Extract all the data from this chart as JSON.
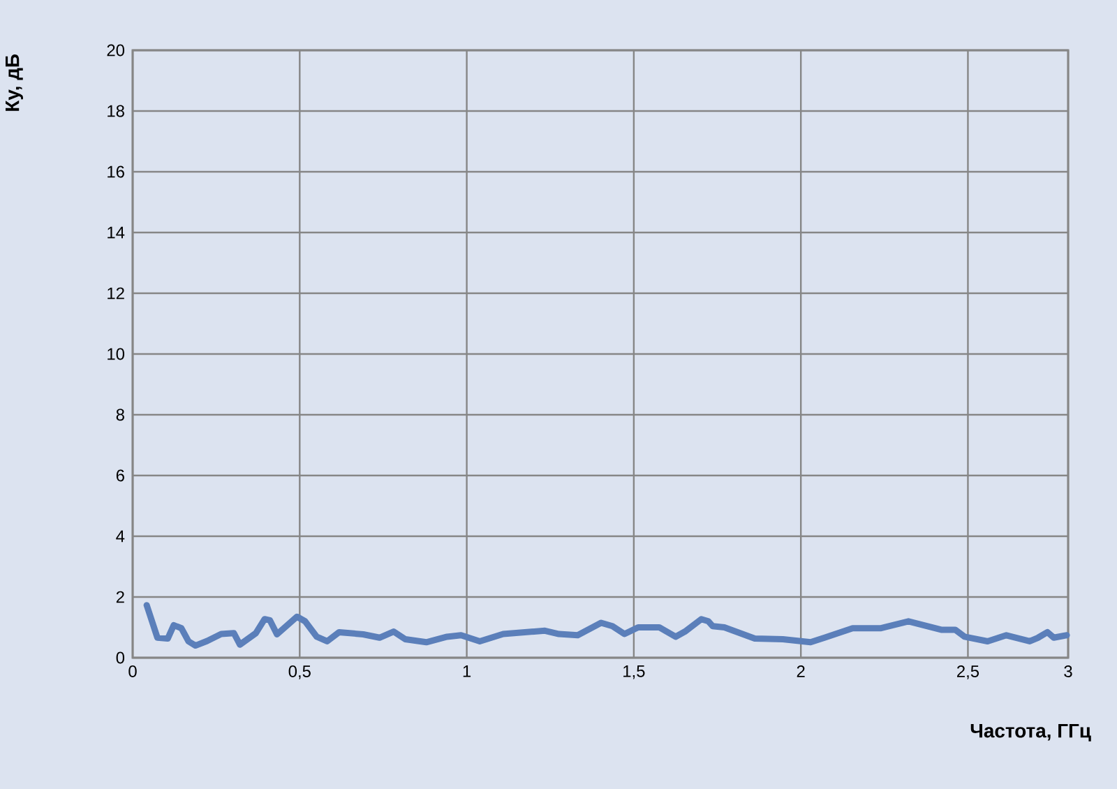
{
  "chart_data": {
    "type": "line",
    "xlabel": "Частота, ГГц",
    "ylabel": "Ку, дБ",
    "x": [
      0.042,
      0.074,
      0.105,
      0.123,
      0.146,
      0.167,
      0.188,
      0.223,
      0.265,
      0.303,
      0.321,
      0.369,
      0.395,
      0.411,
      0.432,
      0.46,
      0.492,
      0.516,
      0.551,
      0.582,
      0.618,
      0.69,
      0.739,
      0.781,
      0.816,
      0.879,
      0.941,
      0.983,
      1.039,
      1.109,
      1.234,
      1.276,
      1.332,
      1.402,
      1.436,
      1.472,
      1.513,
      1.576,
      1.625,
      1.653,
      1.702,
      1.723,
      1.736,
      1.771,
      1.862,
      1.946,
      2.029,
      2.071,
      2.155,
      2.238,
      2.322,
      2.42,
      2.462,
      2.49,
      2.559,
      2.615,
      2.685,
      2.71,
      2.738,
      2.757,
      2.796
    ],
    "series": [
      {
        "color": "#5b7fba",
        "values": [
          1.73,
          0.66,
          0.63,
          1.07,
          0.97,
          0.54,
          0.4,
          0.55,
          0.78,
          0.81,
          0.43,
          0.81,
          1.27,
          1.23,
          0.77,
          1.04,
          1.35,
          1.2,
          0.69,
          0.54,
          0.84,
          0.77,
          0.66,
          0.86,
          0.61,
          0.51,
          0.69,
          0.74,
          0.54,
          0.78,
          0.89,
          0.78,
          0.74,
          1.15,
          1.04,
          0.78,
          1.0,
          1.0,
          0.69,
          0.86,
          1.27,
          1.2,
          1.04,
          1.0,
          0.63,
          0.61,
          0.51,
          0.66,
          0.97,
          0.97,
          1.2,
          0.92,
          0.92,
          0.69,
          0.54,
          0.74,
          0.54,
          0.66,
          0.84,
          0.66,
          0.74
        ]
      }
    ],
    "xlim": [
      0,
      2.8
    ],
    "ylim": [
      0,
      20
    ],
    "xticks": [
      0,
      {
        "value": 0.5,
        "label": "0,5"
      },
      1,
      {
        "value": 1.5,
        "label": "1,5"
      },
      2,
      {
        "value": 2.5,
        "label": "2,5"
      },
      {
        "value": 2.8,
        "label": "3"
      }
    ],
    "yticks": [
      0,
      2,
      4,
      6,
      8,
      10,
      12,
      14,
      16,
      18,
      20
    ],
    "grid": true,
    "marker": "none",
    "line_style": "solid"
  }
}
